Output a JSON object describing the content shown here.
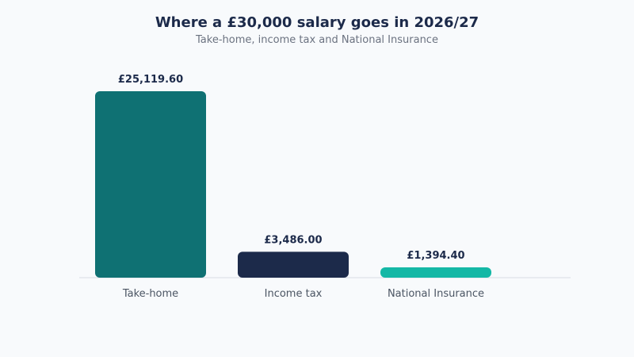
{
  "chart_data": {
    "type": "bar",
    "title": "Where a £30,000 salary goes in 2026/27",
    "subtitle": "Take-home, income tax and National Insurance",
    "categories": [
      "Take-home",
      "Income tax",
      "National Insurance"
    ],
    "values": [
      25119.6,
      3486.0,
      1394.4
    ],
    "value_labels": [
      "£25,119.60",
      "£3,486.00",
      "£1,394.40"
    ],
    "colors": [
      "#0f7173",
      "#1c2a4a",
      "#14b8a6"
    ],
    "xlabel": "",
    "ylabel": "",
    "grid": false,
    "legend": "none"
  }
}
